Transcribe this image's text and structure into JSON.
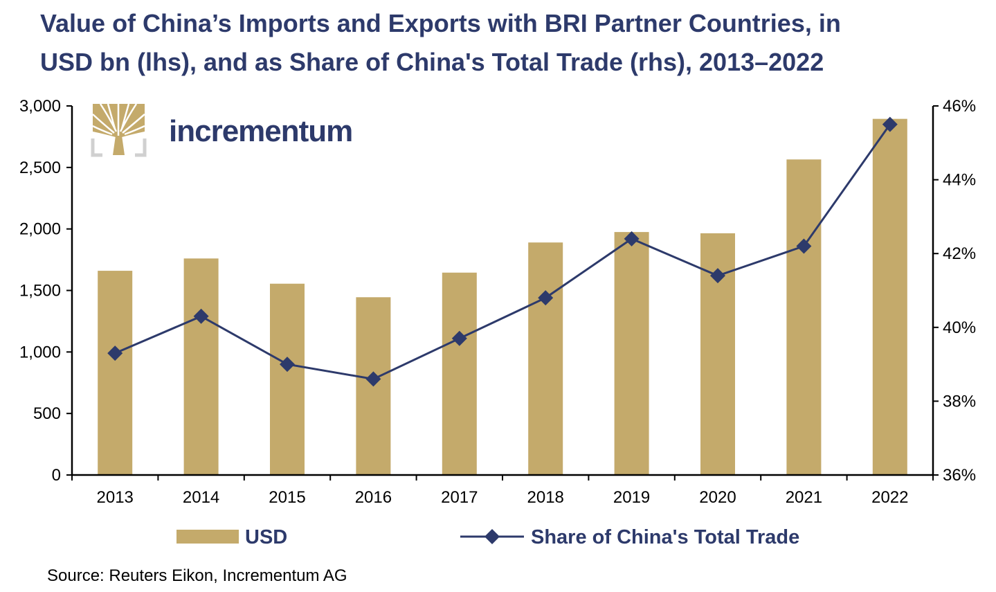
{
  "title_lines": [
    "Value of China’s Imports and Exports with BRI Partner Countries, in",
    "USD bn (lhs), and as Share of China's Total Trade (rhs), 2013–2022"
  ],
  "logo": {
    "text": "incrementum",
    "icon": "tree-icon"
  },
  "source": "Source: Reuters Eikon, Incrementum AG",
  "colors": {
    "bar": "#c4aa6b",
    "line": "#2d3a6b",
    "title": "#2d3a6b",
    "axis": "#000000"
  },
  "chart_data": {
    "type": "bar",
    "title": "Value of China’s Imports and Exports with BRI Partner Countries, in USD bn (lhs), and as Share of China's Total Trade (rhs), 2013–2022",
    "categories": [
      "2013",
      "2014",
      "2015",
      "2016",
      "2017",
      "2018",
      "2019",
      "2020",
      "2021",
      "2022"
    ],
    "series": [
      {
        "name": "USD",
        "type": "bar",
        "axis": "left",
        "values": [
          1660,
          1760,
          1555,
          1445,
          1645,
          1890,
          1975,
          1965,
          2565,
          2895
        ]
      },
      {
        "name": "Share of China's Total Trade",
        "type": "line",
        "marker": "diamond",
        "axis": "right",
        "values": [
          39.3,
          40.3,
          39.0,
          38.6,
          39.7,
          40.8,
          42.4,
          41.4,
          42.2,
          45.5
        ]
      }
    ],
    "y_left": {
      "lim": [
        0,
        3000
      ],
      "ticks": [
        0,
        500,
        1000,
        1500,
        2000,
        2500,
        3000
      ],
      "tick_labels": [
        "0",
        "500",
        "1,000",
        "1,500",
        "2,000",
        "2,500",
        "3,000"
      ]
    },
    "y_right": {
      "lim": [
        36,
        46
      ],
      "ticks": [
        36,
        38,
        40,
        42,
        44,
        46
      ],
      "tick_labels": [
        "36%",
        "38%",
        "40%",
        "42%",
        "44%",
        "46%"
      ]
    },
    "grid": false,
    "legend": "bottom"
  }
}
